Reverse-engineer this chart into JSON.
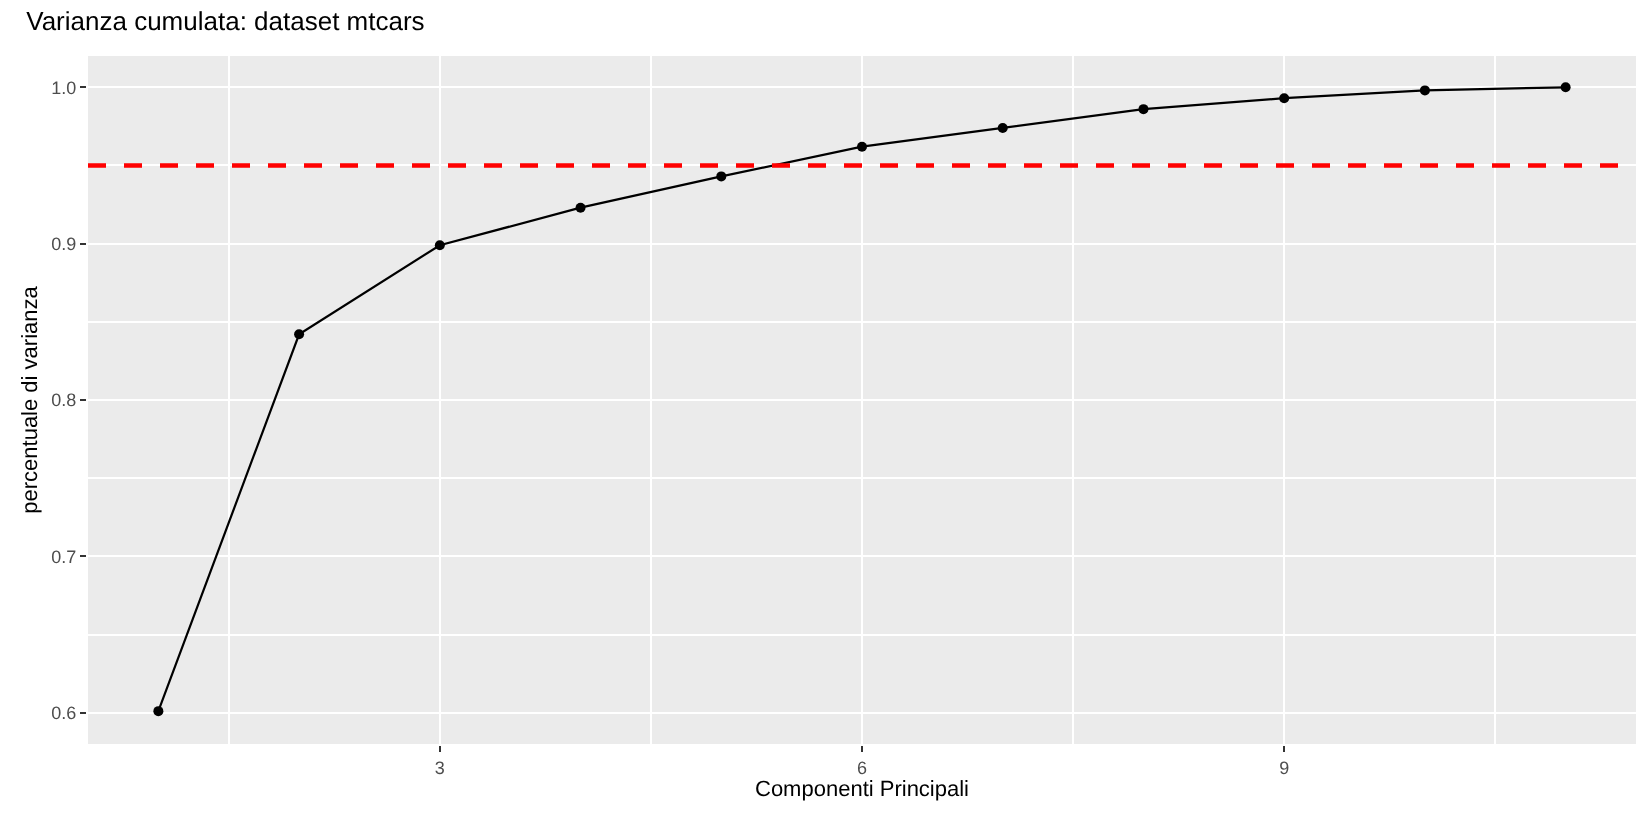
{
  "chart_data": {
    "type": "line",
    "title": "Varianza cumulata: dataset mtcars",
    "xlabel": "Componenti Principali",
    "ylabel": "percentuale di varianza",
    "x": [
      1,
      2,
      3,
      4,
      5,
      6,
      7,
      8,
      9,
      10,
      11
    ],
    "series": [
      {
        "color": "#000000",
        "values": [
          0.601,
          0.842,
          0.899,
          0.923,
          0.943,
          0.962,
          0.974,
          0.986,
          0.993,
          0.998,
          1.0
        ]
      }
    ],
    "xlim": [
      0.5,
      11.5
    ],
    "xticks": [
      3,
      6,
      9
    ],
    "ylim": [
      0.58,
      1.02
    ],
    "yticks": [
      0.6,
      0.7,
      0.8,
      0.9,
      {
        "value": 1.0,
        "label": "1.0"
      }
    ],
    "ref_lines": [
      {
        "axis": "y",
        "value": 0.95,
        "color": "#ff0000",
        "line_style": "dashed"
      }
    ],
    "grid": true,
    "marker": "circle",
    "line_style": "solid"
  }
}
